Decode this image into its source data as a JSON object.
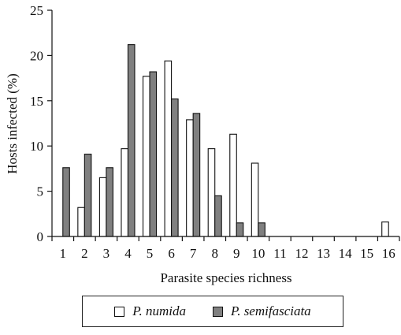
{
  "chart_data": {
    "type": "bar",
    "xlabel": "Parasite species richness",
    "ylabel": "Hosts infected (%)",
    "ylim": [
      0,
      25
    ],
    "yticks": [
      0,
      5,
      10,
      15,
      20,
      25
    ],
    "categories": [
      "1",
      "2",
      "3",
      "4",
      "5",
      "6",
      "7",
      "8",
      "9",
      "10",
      "11",
      "12",
      "13",
      "14",
      "15",
      "16"
    ],
    "series": [
      {
        "name": "P. numida",
        "color": "#ffffff",
        "values": [
          0,
          3.2,
          6.5,
          9.7,
          17.7,
          19.4,
          12.9,
          9.7,
          11.3,
          8.1,
          0,
          0,
          0,
          0,
          0,
          1.6
        ]
      },
      {
        "name": "P. semifasciata",
        "color": "#808080",
        "values": [
          7.6,
          9.1,
          7.6,
          21.2,
          18.2,
          15.2,
          13.6,
          4.5,
          1.5,
          1.5,
          0,
          0,
          0,
          0,
          0,
          0
        ]
      }
    ],
    "legend_position": "bottom",
    "grid": false
  }
}
